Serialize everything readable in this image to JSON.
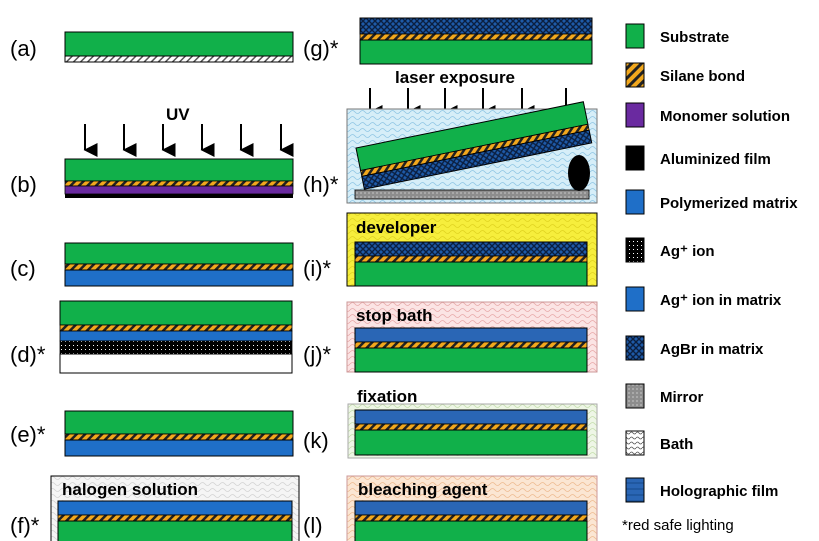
{
  "colors": {
    "substrate": "#11b04a",
    "silane": "#f2a81d",
    "monomer": "#6a2aa0",
    "aluminized": "#000000",
    "polymerized": "#1f6fc8",
    "ag_in_matrix": "#1f6fc8",
    "agbr": "#1a3f7a",
    "mirror": "#8a8a8a",
    "bath": "#c9e7f5",
    "developer_bath": "#f6ee3c",
    "stop_bath": "#f7d6d6",
    "fix_bath": "#e6f2da",
    "bleach_bath": "#f8dcc4",
    "halogen_bath": "#f2f2f2"
  },
  "steps": {
    "a": "(a)",
    "b": "(b)",
    "c": "(c)",
    "d": "(d)*",
    "e": "(e)*",
    "f": "(f)*",
    "g": "(g)*",
    "h": "(h)*",
    "i": "(i)*",
    "j": "(j)*",
    "k": "(k)",
    "l": "(l)"
  },
  "annotations": {
    "uv": "UV",
    "laser": "laser exposure",
    "developer": "developer",
    "stop_bath": "stop bath",
    "fixation": "fixation",
    "bleaching": "bleaching agent",
    "halogen": "halogen solution"
  },
  "legend": [
    {
      "key": "substrate",
      "label": "Substrate",
      "fill": "substrate"
    },
    {
      "key": "silane",
      "label": "Silane bond",
      "fill": "silane"
    },
    {
      "key": "monomer",
      "label": "Monomer solution",
      "fill": "monomer"
    },
    {
      "key": "aluminized",
      "label": "Aluminized film",
      "fill": "aluminized"
    },
    {
      "key": "polymerized",
      "label": "Polymerized matrix",
      "fill": "polymerized"
    },
    {
      "key": "ag_ion",
      "label": "Ag⁺ ion",
      "fill": "ag_ion"
    },
    {
      "key": "ag_in_matrix",
      "label": "Ag⁺ ion in matrix",
      "fill": "ag_in_matrix"
    },
    {
      "key": "agbr",
      "label": "AgBr in matrix",
      "fill": "agbr"
    },
    {
      "key": "mirror",
      "label": "Mirror",
      "fill": "mirror"
    },
    {
      "key": "bath",
      "label": "Bath",
      "fill": "bath"
    },
    {
      "key": "holographic",
      "label": "Holographic film",
      "fill": "holographic"
    }
  ],
  "note": "*red safe lighting"
}
